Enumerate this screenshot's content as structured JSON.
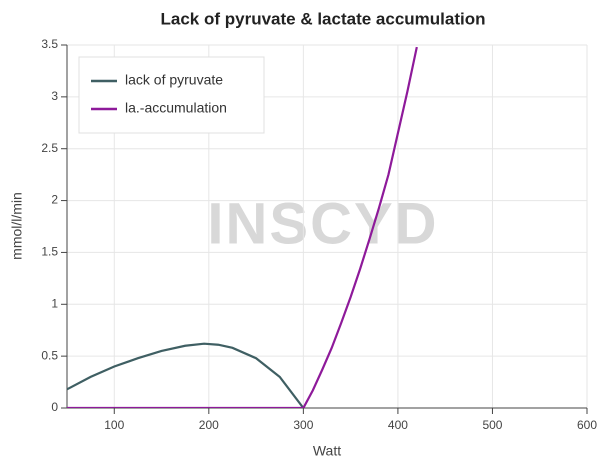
{
  "chart_data": {
    "type": "line",
    "title": "Lack of pyruvate & lactate accumulation",
    "watermark": "INSCYD",
    "x_label": "Watt",
    "y_label": "mmol/l/min",
    "xlim": [
      50,
      600
    ],
    "xticks": [
      100,
      200,
      300,
      400,
      500,
      600
    ],
    "ylim": [
      0,
      3.5
    ],
    "yticks": [
      0,
      0.5,
      1,
      1.5,
      2,
      2.5,
      3,
      3.5
    ],
    "grid": true,
    "legend": "top-left",
    "series": [
      {
        "name": "lack of pyruvate",
        "color": "#3f5f63",
        "x": [
          50,
          75,
          100,
          125,
          150,
          175,
          195,
          210,
          225,
          250,
          275,
          300
        ],
        "values": [
          0.18,
          0.3,
          0.4,
          0.48,
          0.55,
          0.6,
          0.62,
          0.61,
          0.58,
          0.48,
          0.3,
          0
        ]
      },
      {
        "name": "la.-accumulation",
        "color": "#8e1a9a",
        "x": [
          50,
          300,
          310,
          320,
          330,
          340,
          350,
          360,
          370,
          380,
          390,
          400,
          410,
          420
        ],
        "values": [
          0,
          0,
          0.17,
          0.37,
          0.58,
          0.82,
          1.07,
          1.34,
          1.63,
          1.93,
          2.25,
          2.65,
          3.05,
          3.48
        ]
      }
    ]
  }
}
